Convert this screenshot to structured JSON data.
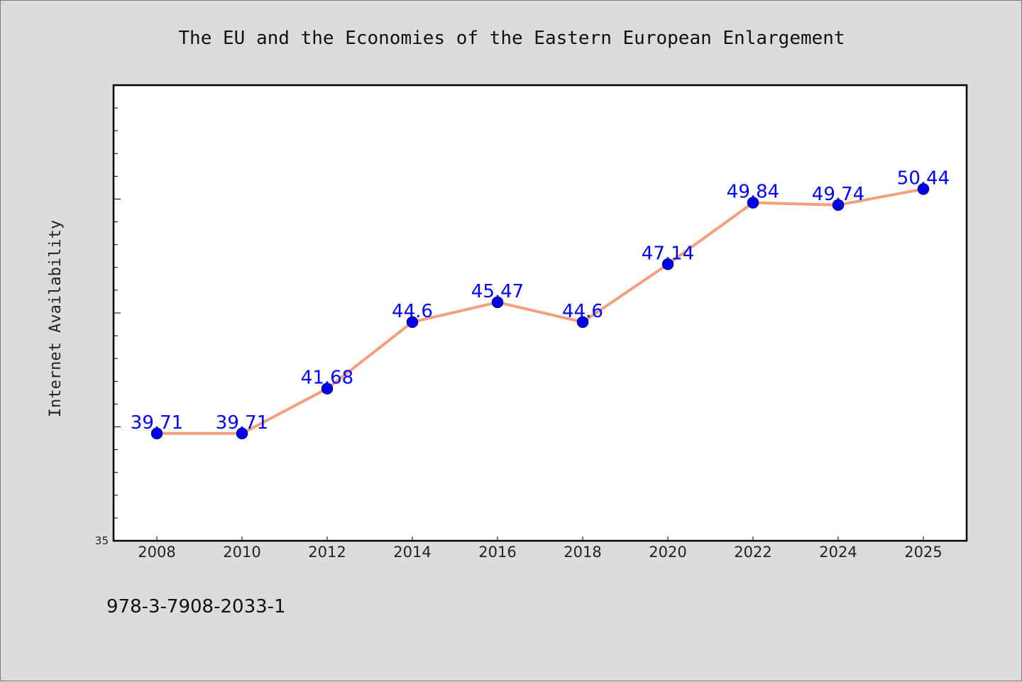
{
  "chart_data": {
    "type": "line",
    "title": "The EU and the Economies of the Eastern European Enlargement",
    "xlabel": "",
    "ylabel": "Internet Availability",
    "categories": [
      "2008",
      "2010",
      "2012",
      "2014",
      "2016",
      "2018",
      "2020",
      "2022",
      "2024",
      "2025"
    ],
    "series": [
      {
        "values": [
          39.71,
          39.71,
          41.68,
          44.6,
          45.47,
          44.6,
          47.14,
          49.84,
          49.74,
          50.44
        ],
        "labels": [
          "39.71",
          "39.71",
          "41.68",
          "44.6",
          "45.47",
          "44.6",
          "47.14",
          "49.84",
          "49.74",
          "50.44"
        ]
      }
    ],
    "ylim": [
      35,
      55
    ],
    "y_tick_label": "35",
    "grid": false,
    "legend": "none"
  },
  "footer": {
    "isbn": "978-3-7908-2033-1"
  },
  "colors": {
    "background": "#dcdcdc",
    "plot_background": "#ffffff",
    "line": "#f4a07e",
    "marker": "#0000ee",
    "data_label": "#0000ff",
    "axis": "#000000"
  }
}
